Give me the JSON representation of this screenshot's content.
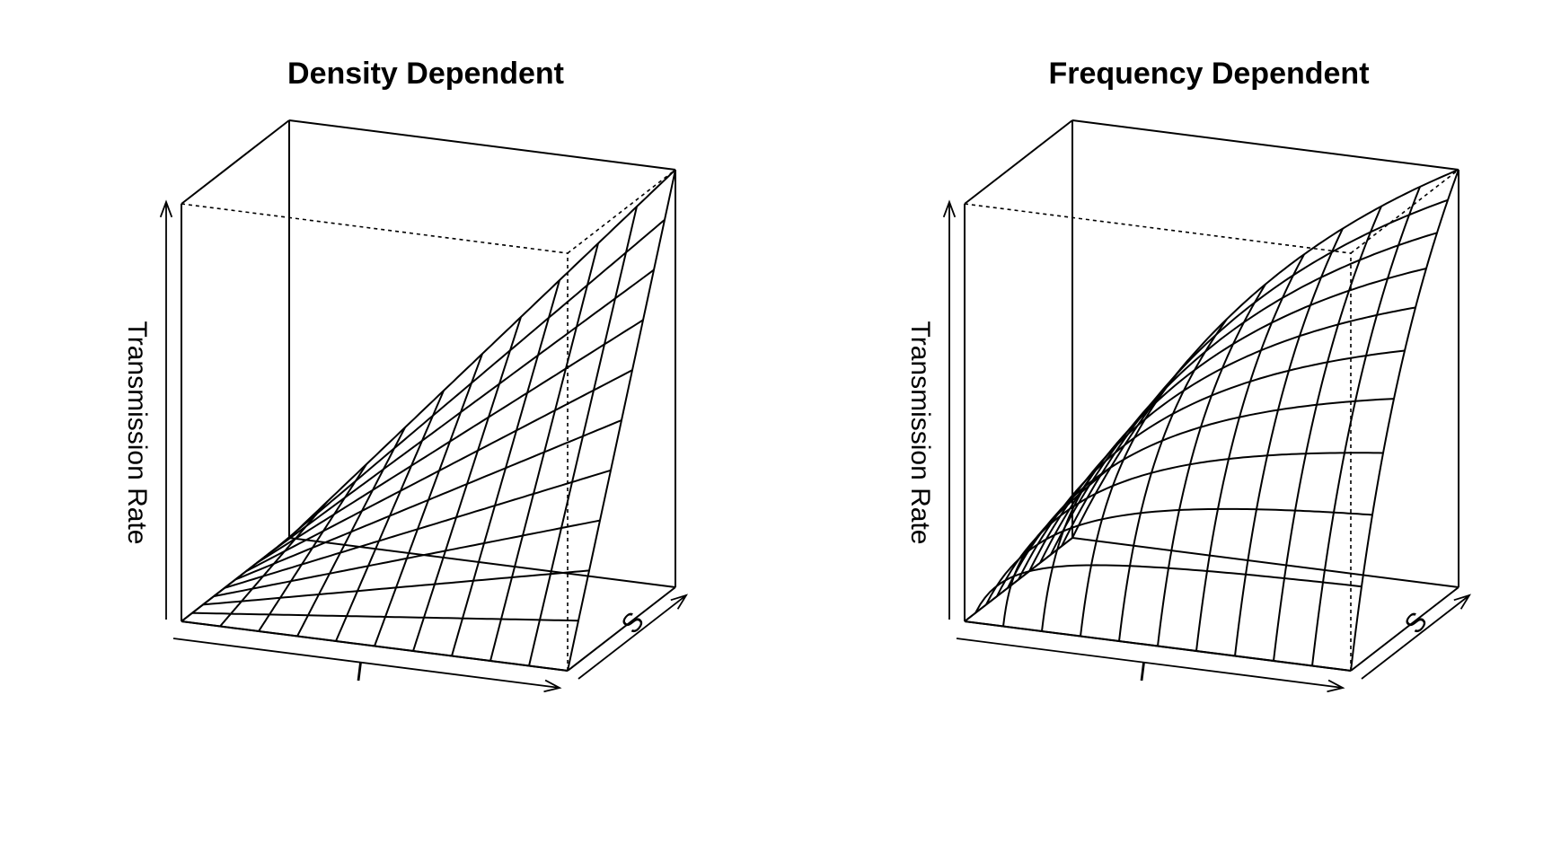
{
  "chart_data": [
    {
      "type": "surface",
      "title": "Density Dependent",
      "xlabel": "I",
      "ylabel": "S",
      "zlabel": "Transmission Rate",
      "formula": "z = I * S",
      "x": [
        0,
        0.1,
        0.2,
        0.3,
        0.4,
        0.5,
        0.6,
        0.7,
        0.8,
        0.9,
        1
      ],
      "y": [
        0,
        0.1,
        0.2,
        0.3,
        0.4,
        0.5,
        0.6,
        0.7,
        0.8,
        0.9,
        1
      ],
      "zlim": [
        0,
        1
      ],
      "ticks": false
    },
    {
      "type": "surface",
      "title": "Frequency Dependent",
      "xlabel": "I",
      "ylabel": "S",
      "zlabel": "Transmission Rate",
      "formula": "z = I * S / (I + S)",
      "x": [
        0,
        0.1,
        0.2,
        0.3,
        0.4,
        0.5,
        0.6,
        0.7,
        0.8,
        0.9,
        1
      ],
      "y": [
        0,
        0.1,
        0.2,
        0.3,
        0.4,
        0.5,
        0.6,
        0.7,
        0.8,
        0.9,
        1
      ],
      "zlim": [
        0,
        0.5
      ],
      "ticks": false
    }
  ]
}
